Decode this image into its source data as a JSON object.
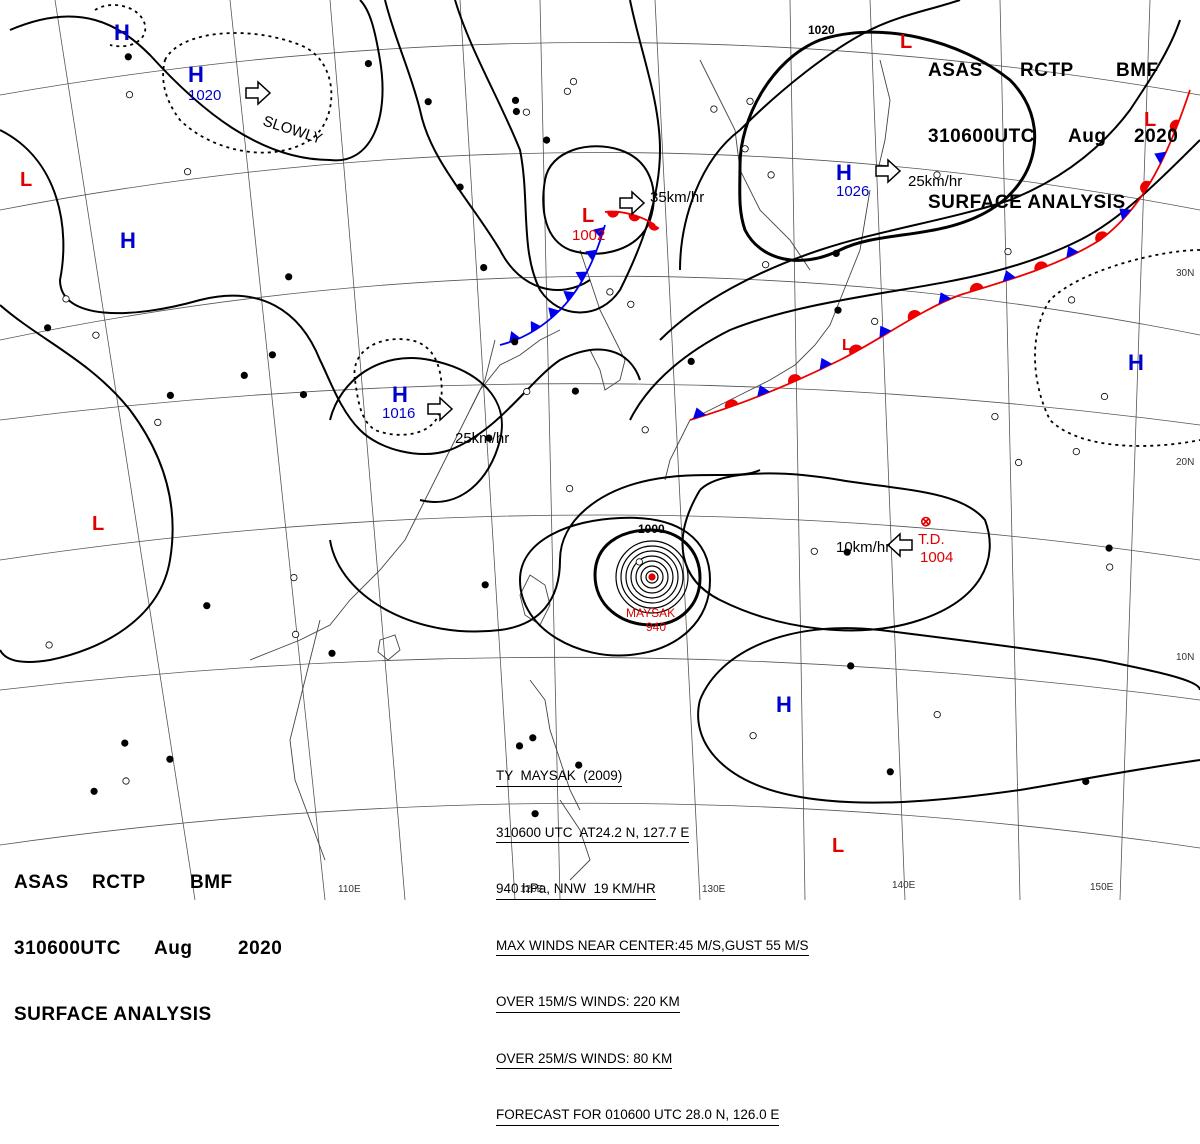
{
  "header_top_right": {
    "agency": "ASAS",
    "station": "RCTP",
    "office": "BMF",
    "time": "310600UTC",
    "month": "Aug",
    "year": "2020",
    "product": "SURFACE ANALYSIS"
  },
  "header_bottom_left": {
    "agency": "ASAS",
    "station": "RCTP",
    "office": "BMF",
    "time": "310600UTC",
    "month": "Aug",
    "year": "2020",
    "product": "SURFACE ANALYSIS"
  },
  "typhoon_info": {
    "line1": "TY  MAYSAK  (2009)",
    "line2": "310600 UTC  AT24.2 N, 127.7 E",
    "line3": "940 hPa, NNW  19 KM/HR",
    "line4": "MAX WINDS NEAR CENTER:45 M/S,GUST 55 M/S",
    "line5": "OVER 15M/S WINDS: 220 KM",
    "line6": "OVER 25M/S WINDS: 80 KM",
    "line7": "FORECAST FOR 010600 UTC 28.0 N, 126.0 E"
  },
  "lat_labels": [
    "30N",
    "20N",
    "10N"
  ],
  "lon_labels": [
    "110E",
    "120E",
    "130E",
    "140E",
    "150E"
  ],
  "colors": {
    "high": "#0000cc",
    "low": "#e00000",
    "isobar": "#000000",
    "grid": "#555555",
    "coast": "#444444",
    "cold_front": "#0000ee",
    "warm_front": "#ee0000"
  },
  "pressure_systems": [
    {
      "type": "H",
      "id": "h-north-china",
      "value": "1020"
    },
    {
      "type": "H",
      "id": "h-top-left",
      "value": ""
    },
    {
      "type": "H",
      "id": "h-west",
      "value": ""
    },
    {
      "type": "H",
      "id": "h-east-china",
      "value": "1016"
    },
    {
      "type": "H",
      "id": "h-japan-sea",
      "value": "1026"
    },
    {
      "type": "H",
      "id": "h-pacific-east",
      "value": ""
    },
    {
      "type": "H",
      "id": "h-pacific-south",
      "value": ""
    },
    {
      "type": "L",
      "id": "l-top-right",
      "value": ""
    },
    {
      "type": "L",
      "id": "l-northeast",
      "value": ""
    },
    {
      "type": "L",
      "id": "l-west",
      "value": ""
    },
    {
      "type": "L",
      "id": "l-southwest",
      "value": ""
    },
    {
      "type": "L",
      "id": "l-korea",
      "value": "1002"
    },
    {
      "type": "L",
      "id": "l-bottom",
      "value": ""
    },
    {
      "type": "L",
      "id": "l-kyushu",
      "value": ""
    }
  ],
  "movement_labels": {
    "slowly": "SLOWLY",
    "north_low": "35km/hr",
    "japan_high": "25km/hr",
    "china_high": "25km/hr",
    "td": "10km/hr"
  },
  "isobar_labels": {
    "top": "1020",
    "typhoon": "1000"
  },
  "tropical_depression": {
    "name": "T.D.",
    "pressure": "1004"
  },
  "typhoon_label": {
    "name": "MAYSAK",
    "pressure": "940"
  }
}
